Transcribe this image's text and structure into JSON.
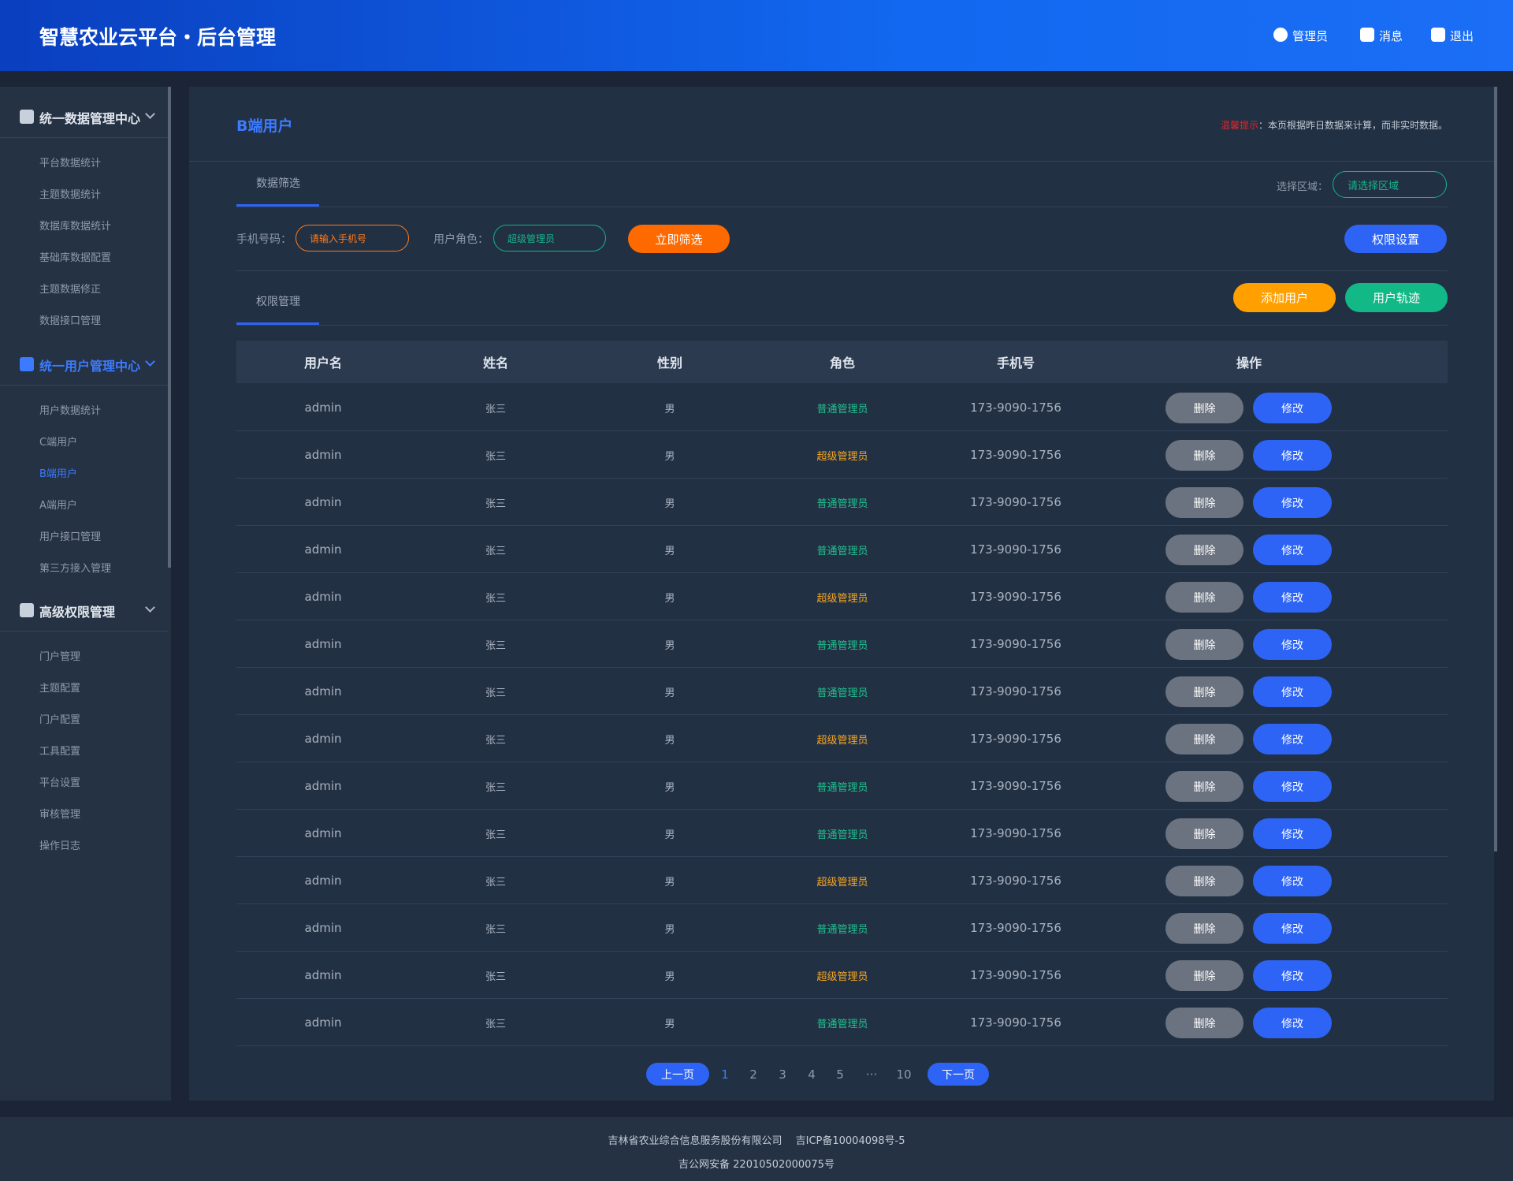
{
  "header": {
    "title": "智慧农业云平台・后台管理",
    "actions": [
      "管理员",
      "消息",
      "退出"
    ]
  },
  "sidebar": {
    "groups": [
      {
        "title": "统一数据管理中心",
        "items": [
          "平台数据统计",
          "主题数据统计",
          "数据库数据统计",
          "基础库数据配置",
          "主题数据修正",
          "数据接口管理"
        ]
      },
      {
        "title": "统一用户管理中心",
        "items": [
          "用户数据统计",
          "C端用户",
          "B端用户",
          "A端用户",
          "用户接口管理",
          "第三方接入管理"
        ]
      },
      {
        "title": "高级权限管理",
        "items": [
          "门户管理",
          "主题配置",
          "门户配置",
          "工具配置",
          "平台设置",
          "审核管理",
          "操作日志"
        ]
      }
    ]
  },
  "page": {
    "title": "B端用户",
    "notice": {
      "label": "温馨提示",
      "text": "：本页根据昨日数据来计算，而非实时数据。"
    },
    "filter_tab": "数据筛选",
    "region": {
      "label": "选择区域：",
      "placeholder": "请选择区域"
    },
    "phone": {
      "label": "手机号码：",
      "placeholder": "请输入手机号"
    },
    "role": {
      "label": "用户角色：",
      "value": "超级管理员"
    },
    "filter_button": "立即筛选",
    "permission_button": "权限设置",
    "list_tab": "权限管理",
    "add_button": "添加用户",
    "track_button": "用户轨迹"
  },
  "table": {
    "columns": [
      "用户名",
      "姓名",
      "性别",
      "角色",
      "手机号",
      "操作"
    ],
    "actions": [
      "删除",
      "修改"
    ],
    "rows": [
      [
        "admin",
        "张三",
        "男",
        "普通管理员",
        "173-9090-1756"
      ],
      [
        "admin",
        "张三",
        "男",
        "超级管理员",
        "173-9090-1756"
      ],
      [
        "admin",
        "张三",
        "男",
        "普通管理员",
        "173-9090-1756"
      ],
      [
        "admin",
        "张三",
        "男",
        "普通管理员",
        "173-9090-1756"
      ],
      [
        "admin",
        "张三",
        "男",
        "超级管理员",
        "173-9090-1756"
      ],
      [
        "admin",
        "张三",
        "男",
        "普通管理员",
        "173-9090-1756"
      ],
      [
        "admin",
        "张三",
        "男",
        "普通管理员",
        "173-9090-1756"
      ],
      [
        "admin",
        "张三",
        "男",
        "超级管理员",
        "173-9090-1756"
      ],
      [
        "admin",
        "张三",
        "男",
        "普通管理员",
        "173-9090-1756"
      ],
      [
        "admin",
        "张三",
        "男",
        "普通管理员",
        "173-9090-1756"
      ],
      [
        "admin",
        "张三",
        "男",
        "超级管理员",
        "173-9090-1756"
      ],
      [
        "admin",
        "张三",
        "男",
        "普通管理员",
        "173-9090-1756"
      ],
      [
        "admin",
        "张三",
        "男",
        "超级管理员",
        "173-9090-1756"
      ],
      [
        "admin",
        "张三",
        "男",
        "普通管理员",
        "173-9090-1756"
      ]
    ]
  },
  "pagination": {
    "prev": "上一页",
    "pages": [
      "1",
      "2",
      "3",
      "4",
      "5",
      "···",
      "10"
    ],
    "next": "下一页"
  },
  "footer": [
    "吉林省农业综合信息服务股份有限公司　 吉ICP备10004098号-5",
    "吉公网安备 22010502000075号"
  ]
}
